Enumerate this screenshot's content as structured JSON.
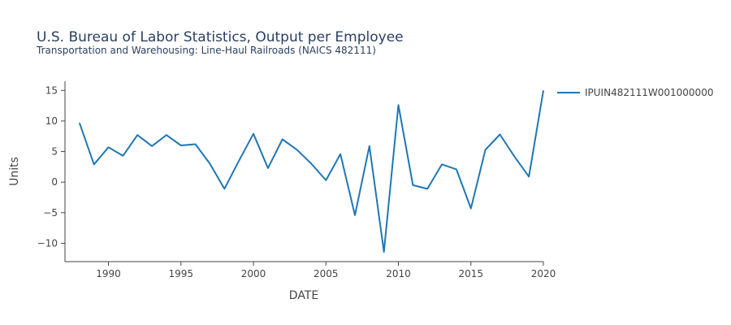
{
  "chart_data": {
    "type": "line",
    "title": "U.S. Bureau of Labor Statistics, Output per Employee",
    "subtitle": "Transportation and Warehousing: Line-Haul Railroads (NAICS 482111)",
    "xlabel": "DATE",
    "ylabel": "Units",
    "xlim": [
      1987,
      2020
    ],
    "ylim": [
      -13,
      16.5
    ],
    "x_ticks": [
      1990,
      1995,
      2000,
      2005,
      2010,
      2015,
      2020
    ],
    "y_ticks": [
      -10,
      -5,
      0,
      5,
      10,
      15
    ],
    "grid": false,
    "legend_position": "top-right",
    "series": [
      {
        "name": "IPUIN482111W001000000",
        "color": "#1f77b4",
        "x": [
          1988,
          1989,
          1990,
          1991,
          1992,
          1993,
          1994,
          1995,
          1996,
          1997,
          1998,
          1999,
          2000,
          2001,
          2002,
          2003,
          2004,
          2005,
          2006,
          2007,
          2008,
          2009,
          2010,
          2011,
          2012,
          2013,
          2014,
          2015,
          2016,
          2017,
          2018,
          2019,
          2020
        ],
        "values": [
          9.7,
          2.9,
          5.7,
          4.3,
          7.7,
          5.9,
          7.7,
          6.0,
          6.2,
          3.0,
          -1.1,
          3.5,
          7.9,
          2.3,
          7.0,
          5.3,
          3.0,
          0.3,
          4.6,
          -5.4,
          5.9,
          -11.4,
          12.6,
          -0.5,
          -1.1,
          2.9,
          2.1,
          -4.3,
          5.3,
          7.8,
          4.2,
          0.9,
          15.0
        ]
      }
    ]
  }
}
